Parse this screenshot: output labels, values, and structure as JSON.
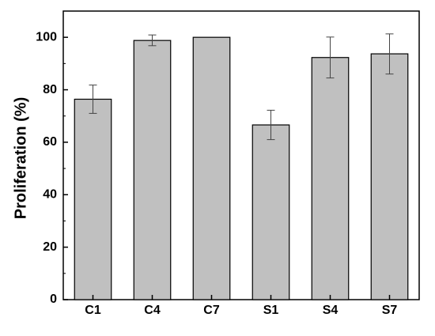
{
  "chart_data": {
    "type": "bar",
    "categories": [
      "C1",
      "C4",
      "C7",
      "S1",
      "S4",
      "S7"
    ],
    "values": [
      76.4,
      98.8,
      100.0,
      66.6,
      92.3,
      93.7
    ],
    "error_low": [
      71.0,
      96.8,
      100.0,
      61.0,
      84.5,
      86.0
    ],
    "error_high": [
      81.8,
      100.9,
      100.0,
      72.2,
      100.1,
      101.3
    ],
    "xlabel": "",
    "ylabel": "Proliferation (%)",
    "ylim": [
      0,
      110
    ],
    "yticks": [
      0,
      20,
      40,
      60,
      80,
      100
    ],
    "grid": false,
    "legend": "none",
    "colors": {
      "bar_fill": "#c0c0c0",
      "bar_stroke": "#000000",
      "axis": "#000000",
      "error_bar": "#444444"
    }
  }
}
